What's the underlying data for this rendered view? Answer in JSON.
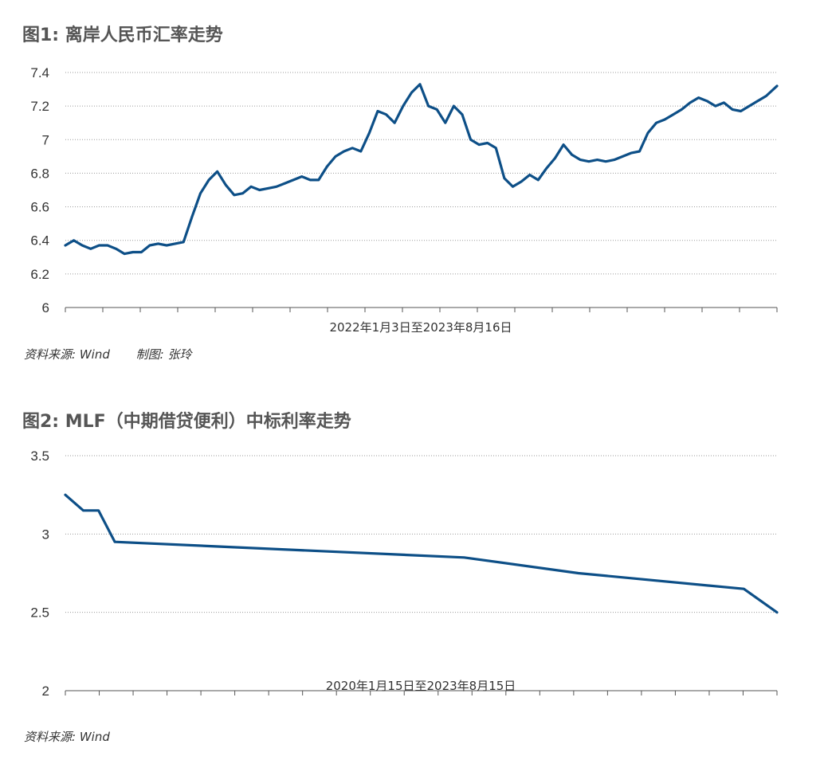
{
  "chart1": {
    "title": "图1: 离岸人民币汇率走势",
    "source": "资料来源: Wind",
    "author": "制图: 张玲",
    "color": "#0d4f87",
    "chart_data": {
      "type": "line",
      "title": "图1: 离岸人民币汇率走势",
      "xlabel": "2022年1月3日至2023年8月16日",
      "ylabel": "",
      "ylim": [
        6,
        7.4
      ],
      "yticks": [
        6,
        6.2,
        6.4,
        6.6,
        6.8,
        7,
        7.2,
        7.4
      ],
      "ytick_labels": [
        "6",
        "6.2",
        "6.4",
        "6.6",
        "6.8",
        "7",
        "7.2",
        "7.4"
      ],
      "grid": "horizontal dotted",
      "x_range": [
        "2022-01-03",
        "2023-08-16"
      ],
      "series": [
        {
          "x": [
            "2022-01-03",
            "2022-01-10",
            "2022-01-17",
            "2022-01-24",
            "2022-01-31",
            "2022-02-07",
            "2022-02-14",
            "2022-02-21",
            "2022-02-28",
            "2022-03-07",
            "2022-03-14",
            "2022-03-21",
            "2022-03-28",
            "2022-04-04",
            "2022-04-11",
            "2022-04-18",
            "2022-04-25",
            "2022-05-02",
            "2022-05-09",
            "2022-05-16",
            "2022-05-23",
            "2022-05-30",
            "2022-06-06",
            "2022-06-13",
            "2022-06-20",
            "2022-06-27",
            "2022-07-04",
            "2022-07-11",
            "2022-07-18",
            "2022-07-25",
            "2022-08-01",
            "2022-08-08",
            "2022-08-15",
            "2022-08-22",
            "2022-08-29",
            "2022-09-05",
            "2022-09-12",
            "2022-09-19",
            "2022-09-26",
            "2022-10-03",
            "2022-10-10",
            "2022-10-17",
            "2022-10-24",
            "2022-10-31",
            "2022-11-07",
            "2022-11-14",
            "2022-11-21",
            "2022-11-28",
            "2022-12-05",
            "2022-12-12",
            "2022-12-19",
            "2022-12-26",
            "2023-01-02",
            "2023-01-09",
            "2023-01-16",
            "2023-01-23",
            "2023-01-30",
            "2023-02-06",
            "2023-02-13",
            "2023-02-20",
            "2023-02-27",
            "2023-03-06",
            "2023-03-13",
            "2023-03-20",
            "2023-03-27",
            "2023-04-03",
            "2023-04-10",
            "2023-04-17",
            "2023-04-24",
            "2023-05-01",
            "2023-05-08",
            "2023-05-15",
            "2023-05-22",
            "2023-05-29",
            "2023-06-05",
            "2023-06-12",
            "2023-06-19",
            "2023-06-26",
            "2023-07-03",
            "2023-07-10",
            "2023-07-17",
            "2023-07-24",
            "2023-07-31",
            "2023-08-07",
            "2023-08-16"
          ],
          "values": [
            6.37,
            6.4,
            6.37,
            6.35,
            6.37,
            6.37,
            6.35,
            6.32,
            6.33,
            6.33,
            6.37,
            6.38,
            6.37,
            6.38,
            6.39,
            6.54,
            6.68,
            6.76,
            6.81,
            6.73,
            6.67,
            6.68,
            6.72,
            6.7,
            6.71,
            6.72,
            6.74,
            6.76,
            6.78,
            6.76,
            6.76,
            6.84,
            6.9,
            6.93,
            6.95,
            6.93,
            7.04,
            7.17,
            7.15,
            7.1,
            7.2,
            7.28,
            7.33,
            7.2,
            7.18,
            7.1,
            7.2,
            7.15,
            7.0,
            6.97,
            6.98,
            6.95,
            6.77,
            6.72,
            6.75,
            6.79,
            6.76,
            6.83,
            6.89,
            6.97,
            6.91,
            6.88,
            6.87,
            6.88,
            6.87,
            6.88,
            6.9,
            6.92,
            6.93,
            7.04,
            7.1,
            7.12,
            7.15,
            7.18,
            7.22,
            7.25,
            7.23,
            7.2,
            7.22,
            7.18,
            7.17,
            7.2,
            7.23,
            7.26,
            7.32
          ]
        }
      ]
    }
  },
  "chart2": {
    "title": "图2: MLF（中期借贷便利）中标利率走势",
    "source": "资料来源: Wind",
    "color": "#0d4f87",
    "chart_data": {
      "type": "line",
      "title": "图2: MLF（中期借贷便利）中标利率走势",
      "xlabel": "2020年1月15日至2023年8月15日",
      "ylabel": "",
      "ylim": [
        2,
        3.5
      ],
      "yticks": [
        2,
        2.5,
        3,
        3.5
      ],
      "ytick_labels": [
        "2",
        "2.5",
        "3",
        "3.5"
      ],
      "grid": "horizontal dotted",
      "x_range": [
        "2020-01-15",
        "2023-08-15"
      ],
      "series": [
        {
          "x": [
            "2020-01-15",
            "2020-02-17",
            "2020-03-16",
            "2020-04-15",
            "2022-01-17",
            "2022-08-15",
            "2023-06-15",
            "2023-08-15"
          ],
          "values": [
            3.25,
            3.15,
            3.15,
            2.95,
            2.85,
            2.75,
            2.65,
            2.5
          ]
        }
      ]
    }
  }
}
